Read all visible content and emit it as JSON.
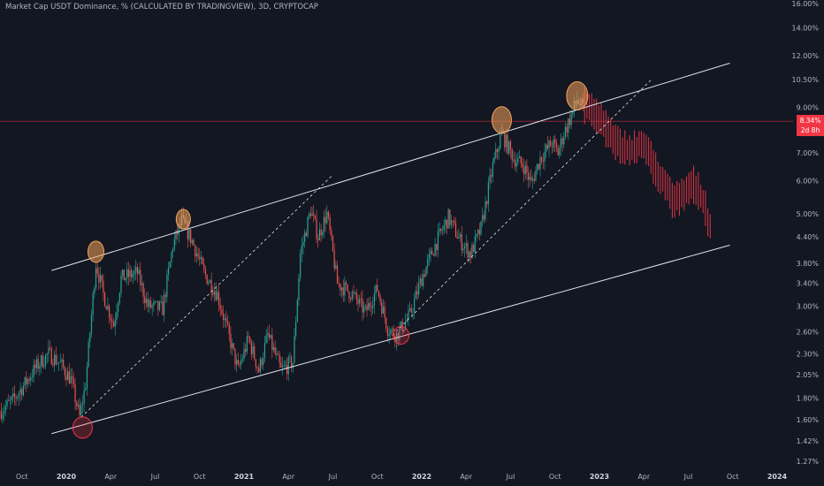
{
  "colors": {
    "background": "#131722",
    "up": "#26a69a",
    "down": "#ef5350",
    "projection": "#f23645",
    "channel": "#e0e3eb",
    "priceLine": "#f23645",
    "marker": "#f5a35a",
    "markerLow": "#f23645"
  },
  "chart_data": {
    "type": "candlestick",
    "title": "Market Cap USDT Dominance, % (CALCULATED BY TRADINGVIEW), 3D, CRYPTOCAP",
    "scale": "log",
    "ylim": [
      1.25,
      16.5
    ],
    "y_ticks": [
      "16.00%",
      "14.00%",
      "12.00%",
      "10.50%",
      "9.00%",
      "8.34%",
      "7.00%",
      "6.00%",
      "5.00%",
      "4.40%",
      "3.80%",
      "3.40%",
      "3.00%",
      "2.60%",
      "2.30%",
      "2.05%",
      "1.80%",
      "1.60%",
      "1.42%",
      "1.27%"
    ],
    "y_tick_values": [
      16.0,
      14.0,
      12.0,
      10.5,
      9.0,
      8.34,
      7.0,
      6.0,
      5.0,
      4.4,
      3.8,
      3.4,
      3.0,
      2.6,
      2.3,
      2.05,
      1.8,
      1.6,
      1.42,
      1.27
    ],
    "x_ticks": [
      {
        "label": "Oct",
        "month": -3,
        "bold": false
      },
      {
        "label": "2020",
        "month": 0,
        "bold": true
      },
      {
        "label": "Apr",
        "month": 3,
        "bold": false
      },
      {
        "label": "Jul",
        "month": 6,
        "bold": false
      },
      {
        "label": "Oct",
        "month": 9,
        "bold": false
      },
      {
        "label": "2021",
        "month": 12,
        "bold": true
      },
      {
        "label": "Apr",
        "month": 15,
        "bold": false
      },
      {
        "label": "Jul",
        "month": 18,
        "bold": false
      },
      {
        "label": "Oct",
        "month": 21,
        "bold": false
      },
      {
        "label": "2022",
        "month": 24,
        "bold": true
      },
      {
        "label": "Apr",
        "month": 27,
        "bold": false
      },
      {
        "label": "Jul",
        "month": 30,
        "bold": false
      },
      {
        "label": "Oct",
        "month": 33,
        "bold": false
      },
      {
        "label": "2023",
        "month": 36,
        "bold": true
      },
      {
        "label": "Apr",
        "month": 39,
        "bold": false
      },
      {
        "label": "Jul",
        "month": 42,
        "bold": false
      },
      {
        "label": "Oct",
        "month": 45,
        "bold": false
      },
      {
        "label": "2024",
        "month": 48,
        "bold": true
      }
    ],
    "current_value": {
      "label": "8.34%",
      "sublabel": "2d 8h",
      "value": 8.34
    },
    "price_anchors": [
      [
        -4.4,
        1.68
      ],
      [
        -3.6,
        1.78
      ],
      [
        -2.8,
        1.95
      ],
      [
        -2.0,
        2.15
      ],
      [
        -1.2,
        2.3
      ],
      [
        -0.5,
        2.2
      ],
      [
        0.3,
        2.0
      ],
      [
        0.9,
        1.62
      ],
      [
        1.3,
        1.95
      ],
      [
        2.0,
        3.8
      ],
      [
        2.5,
        3.2
      ],
      [
        3.2,
        2.7
      ],
      [
        3.7,
        3.5
      ],
      [
        4.8,
        3.6
      ],
      [
        5.5,
        3.0
      ],
      [
        6.5,
        2.95
      ],
      [
        7.2,
        4.2
      ],
      [
        7.8,
        4.8
      ],
      [
        8.5,
        4.3
      ],
      [
        9.3,
        3.6
      ],
      [
        10.2,
        3.2
      ],
      [
        10.9,
        2.6
      ],
      [
        11.6,
        2.1
      ],
      [
        12.3,
        2.5
      ],
      [
        13.0,
        2.1
      ],
      [
        13.6,
        2.55
      ],
      [
        14.5,
        2.1
      ],
      [
        15.3,
        2.2
      ],
      [
        15.8,
        4.0
      ],
      [
        16.5,
        5.1
      ],
      [
        17.0,
        4.4
      ],
      [
        17.6,
        5.0
      ],
      [
        18.3,
        3.4
      ],
      [
        19.3,
        3.2
      ],
      [
        20.2,
        2.9
      ],
      [
        21.0,
        3.3
      ],
      [
        21.7,
        2.65
      ],
      [
        22.3,
        2.55
      ],
      [
        23.2,
        2.85
      ],
      [
        24.0,
        3.5
      ],
      [
        24.9,
        4.2
      ],
      [
        25.8,
        4.9
      ],
      [
        26.6,
        4.3
      ],
      [
        27.3,
        4.0
      ],
      [
        28.0,
        4.6
      ],
      [
        28.8,
        6.5
      ],
      [
        29.4,
        7.8
      ],
      [
        30.2,
        6.8
      ],
      [
        30.9,
        6.5
      ],
      [
        31.4,
        5.9
      ],
      [
        32.0,
        6.8
      ],
      [
        32.8,
        7.4
      ],
      [
        33.2,
        7.0
      ],
      [
        33.6,
        7.8
      ],
      [
        34.1,
        8.6
      ],
      [
        34.5,
        9.4
      ],
      [
        35.0,
        8.8
      ]
    ],
    "projection_anchors": [
      [
        35.0,
        9.1
      ],
      [
        36.0,
        8.6
      ],
      [
        37.0,
        7.4
      ],
      [
        38.0,
        7.1
      ],
      [
        39.0,
        7.3
      ],
      [
        39.6,
        6.6
      ],
      [
        40.3,
        6.0
      ],
      [
        41.0,
        5.3
      ],
      [
        41.7,
        5.6
      ],
      [
        42.4,
        5.9
      ],
      [
        43.1,
        5.3
      ],
      [
        43.6,
        4.4
      ]
    ],
    "channel_lines": [
      {
        "name": "upper",
        "points": [
          [
            -1.0,
            3.65
          ],
          [
            44.8,
            11.5
          ]
        ]
      },
      {
        "name": "lower",
        "points": [
          [
            -1.0,
            1.48
          ],
          [
            44.8,
            4.2
          ]
        ]
      }
    ],
    "support_lines": [
      {
        "name": "dashed-left",
        "points": [
          [
            1.0,
            1.62
          ],
          [
            18.0,
            6.2
          ]
        ]
      },
      {
        "name": "dashed-right",
        "points": [
          [
            22.0,
            2.55
          ],
          [
            39.5,
            10.5
          ]
        ]
      }
    ],
    "markers": [
      {
        "name": "peak-2020-mar",
        "month": 2.0,
        "value": 4.05,
        "rx": 9,
        "ry": 12,
        "kind": "high"
      },
      {
        "name": "peak-2020-sep",
        "month": 7.9,
        "value": 4.85,
        "rx": 8,
        "ry": 11,
        "kind": "high"
      },
      {
        "name": "peak-2022-jun",
        "month": 29.4,
        "value": 8.4,
        "rx": 11,
        "ry": 15,
        "kind": "high"
      },
      {
        "name": "peak-2022-nov",
        "month": 34.5,
        "value": 9.6,
        "rx": 12,
        "ry": 16,
        "kind": "high"
      },
      {
        "name": "low-2020-feb",
        "month": 1.1,
        "value": 1.53,
        "rx": 11,
        "ry": 12,
        "kind": "low"
      },
      {
        "name": "low-2021-nov",
        "month": 22.6,
        "value": 2.55,
        "rx": 9,
        "ry": 10,
        "kind": "low"
      }
    ]
  }
}
